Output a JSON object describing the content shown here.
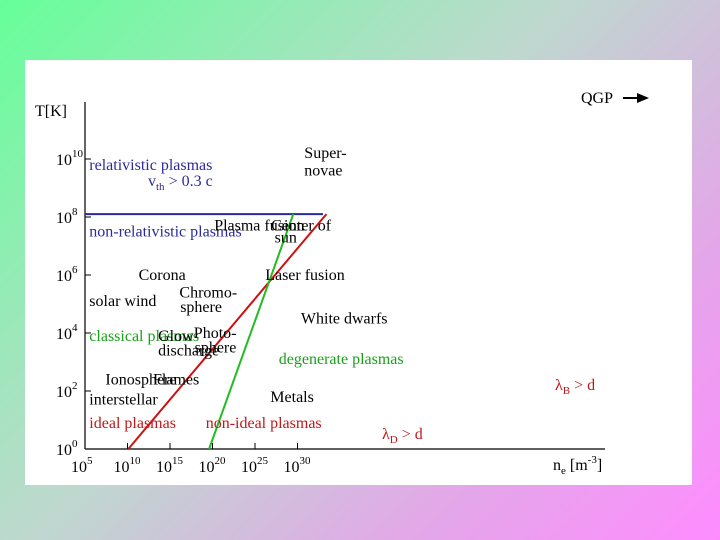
{
  "colors": {
    "blue": "#2a2a9a",
    "green": "#1aa01a",
    "red": "#c01818",
    "boundary_green": "#22bb22",
    "boundary_red": "#cc1111",
    "axis": "#000000"
  },
  "chart_data": {
    "type": "line",
    "title": "",
    "xlabel": {
      "base": "n",
      "sub": "e",
      "rest": " [m",
      "sup": "-3",
      "close": "]"
    },
    "ylabel": "T[K]",
    "x_log_range": [
      5,
      33
    ],
    "y_log_range": [
      0,
      11
    ],
    "x_ticks": [
      {
        "base": "10",
        "exp": "5",
        "value": 5
      },
      {
        "base": "10",
        "exp": "10",
        "value": 10
      },
      {
        "base": "10",
        "exp": "15",
        "value": 15
      },
      {
        "base": "10",
        "exp": "20",
        "value": 20
      },
      {
        "base": "10",
        "exp": "25",
        "value": 25
      },
      {
        "base": "10",
        "exp": "30",
        "value": 30
      }
    ],
    "y_ticks": [
      {
        "base": "10",
        "exp": "0",
        "value": 0
      },
      {
        "base": "10",
        "exp": "2",
        "value": 2
      },
      {
        "base": "10",
        "exp": "4",
        "value": 4
      },
      {
        "base": "10",
        "exp": "6",
        "value": 6
      },
      {
        "base": "10",
        "exp": "8",
        "value": 8
      },
      {
        "base": "10",
        "exp": "10",
        "value": 10
      }
    ],
    "lines": [
      {
        "role": "relativistic-boundary",
        "color": "#2a2a9a",
        "points": [
          [
            5,
            8.1
          ],
          [
            33,
            8.1
          ]
        ]
      },
      {
        "role": "ideality-boundary",
        "color": "#cc1111",
        "points": [
          [
            10.1,
            0
          ],
          [
            33.4,
            8.1
          ]
        ]
      },
      {
        "role": "degeneracy-boundary",
        "color": "#22bb22",
        "points": [
          [
            19.6,
            0
          ],
          [
            29.5,
            8.1
          ]
        ]
      }
    ],
    "annotations": [
      {
        "text": "relativistic plasmas",
        "x": 5.5,
        "y": 9.8,
        "color": "#2a2a9a"
      },
      {
        "text": "non-relativistic plasmas",
        "x": 5.5,
        "y": 7.5,
        "color": "#2a2a9a"
      },
      {
        "text": "Super-",
        "x": 30.8,
        "y": 10.2,
        "color": "#000000"
      },
      {
        "text": "novae",
        "x": 30.8,
        "y": 9.6,
        "color": "#000000"
      },
      {
        "text": "Plasma fusion",
        "x": 20.2,
        "y": 7.7,
        "color": "#000000"
      },
      {
        "text": "Center of",
        "x": 26.9,
        "y": 7.7,
        "color": "#000000"
      },
      {
        "text": "sun",
        "x": 27.3,
        "y": 7.3,
        "color": "#000000"
      },
      {
        "text": "Corona",
        "x": 11.3,
        "y": 6.0,
        "color": "#000000"
      },
      {
        "text": "Laser fusion",
        "x": 26.2,
        "y": 6.0,
        "color": "#000000"
      },
      {
        "text": "solar wind",
        "x": 5.5,
        "y": 5.1,
        "color": "#000000"
      },
      {
        "text": "Chromo-",
        "x": 16.1,
        "y": 5.4,
        "color": "#000000"
      },
      {
        "text": "sphere",
        "x": 16.2,
        "y": 4.9,
        "color": "#000000"
      },
      {
        "text": "White dwarfs",
        "x": 30.4,
        "y": 4.5,
        "color": "#000000"
      },
      {
        "text": "classical plasmas",
        "x": 5.5,
        "y": 3.9,
        "color": "#1aa01a"
      },
      {
        "text": "Glow",
        "x": 13.6,
        "y": 3.9,
        "color": "#000000"
      },
      {
        "text": "discharge",
        "x": 13.6,
        "y": 3.4,
        "color": "#000000"
      },
      {
        "text": "Photo-",
        "x": 17.8,
        "y": 4.0,
        "color": "#000000"
      },
      {
        "text": "sphere",
        "x": 17.9,
        "y": 3.5,
        "color": "#000000"
      },
      {
        "text": "degenerate plasmas",
        "x": 27.8,
        "y": 3.1,
        "color": "#1aa01a"
      },
      {
        "text": "Ionosphere",
        "x": 7.4,
        "y": 2.4,
        "color": "#000000"
      },
      {
        "text": "Flames",
        "x": 13.0,
        "y": 2.4,
        "color": "#000000"
      },
      {
        "text": "interstellar",
        "x": 5.5,
        "y": 1.7,
        "color": "#000000"
      },
      {
        "text": "Metals",
        "x": 26.8,
        "y": 1.8,
        "color": "#000000"
      },
      {
        "text": "ideal plasmas",
        "x": 5.5,
        "y": 0.9,
        "color": "#c01818"
      },
      {
        "text": "non-ideal plasmas",
        "x": 19.2,
        "y": 0.9,
        "color": "#c01818"
      }
    ],
    "math_labels": [
      {
        "base": "v",
        "sub": "th",
        "rest": " > 0.3 c",
        "color": "#2a2a9a"
      },
      {
        "base": "λ",
        "sub": "B",
        "rest": " > d",
        "color": "#c01818"
      },
      {
        "base": "λ",
        "sub": "D",
        "rest": " > d",
        "color": "#c01818"
      }
    ],
    "arrow_label": "QGP"
  }
}
